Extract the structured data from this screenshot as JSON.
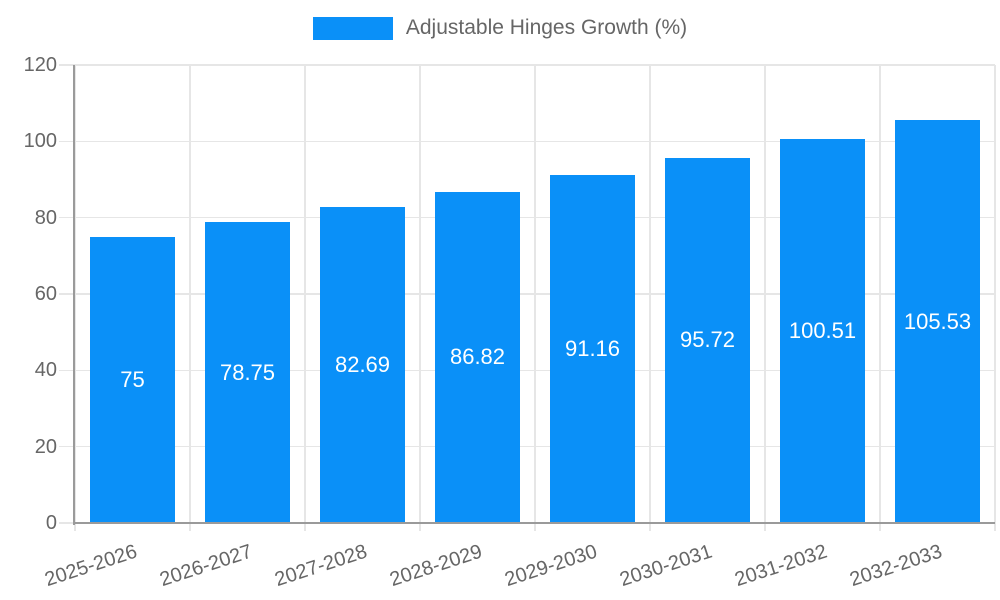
{
  "legend": {
    "label": "Adjustable Hinges Growth (%)"
  },
  "chart_data": {
    "type": "bar",
    "title": "",
    "series_name": "Adjustable Hinges Growth (%)",
    "categories": [
      "2025-2026",
      "2026-2027",
      "2027-2028",
      "2028-2029",
      "2029-2030",
      "2030-2031",
      "2031-2032",
      "2032-2033"
    ],
    "values": [
      75,
      78.75,
      82.69,
      86.82,
      91.16,
      95.72,
      100.51,
      105.53
    ],
    "value_labels": [
      "75",
      "78.75",
      "82.69",
      "86.82",
      "91.16",
      "95.72",
      "100.51",
      "105.53"
    ],
    "xlabel": "",
    "ylabel": "",
    "ylim": [
      0,
      120
    ],
    "yticks": [
      0,
      20,
      40,
      60,
      80,
      100,
      120
    ],
    "grid": true,
    "legend_position": "top-center",
    "value_label_position": "inside-center"
  },
  "colors": {
    "bar": "#0A90F8",
    "axis_text": "#666666",
    "grid": "#e6e6e6",
    "axis_line": "#9a9a9a",
    "value_label": "#ffffff",
    "background": "#ffffff"
  }
}
